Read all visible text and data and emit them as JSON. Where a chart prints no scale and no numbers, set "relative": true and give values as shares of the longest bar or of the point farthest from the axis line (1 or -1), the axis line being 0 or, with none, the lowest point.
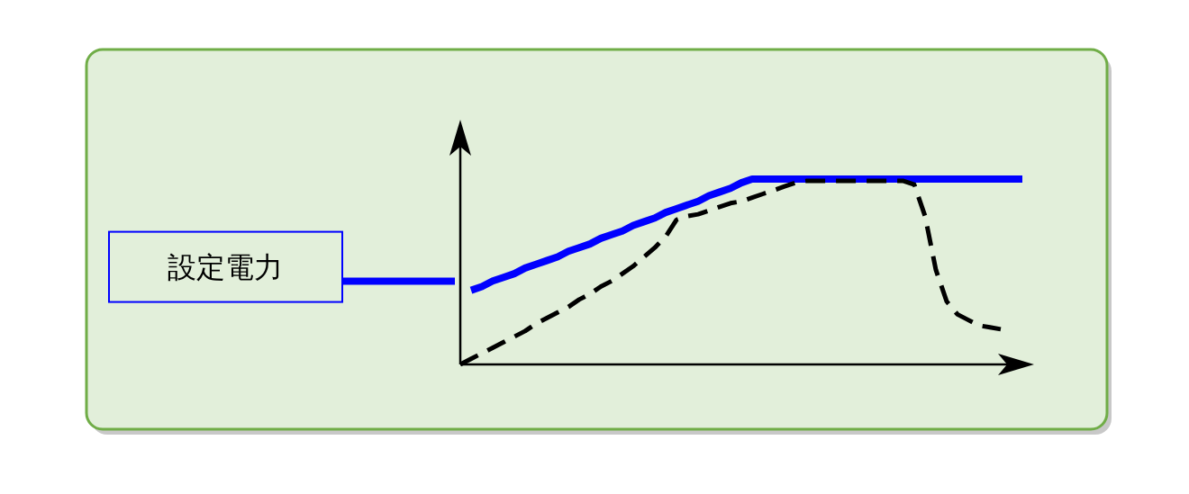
{
  "chart_data": {
    "type": "line",
    "relative": true,
    "categories": [
      null,
      null,
      null,
      null,
      null,
      null,
      null,
      null,
      null,
      null,
      null,
      null,
      null,
      null,
      null,
      null,
      null,
      null,
      null,
      null,
      null,
      null,
      null,
      null,
      null,
      null,
      null,
      null,
      null,
      null,
      null,
      null,
      null,
      null,
      null,
      null,
      null,
      null,
      null,
      null,
      null,
      null,
      null,
      null,
      null,
      null,
      null,
      null,
      null,
      null,
      null,
      null,
      null
    ],
    "series": [
      {
        "name": "設定電力",
        "color": "#0000ff",
        "line_style": "solid",
        "values": [
          null,
          0.4,
          0.42,
          0.45,
          0.47,
          0.49,
          0.52,
          0.54,
          0.56,
          0.58,
          0.61,
          0.63,
          0.65,
          0.68,
          0.7,
          0.72,
          0.75,
          0.77,
          0.79,
          0.82,
          0.84,
          0.86,
          0.88,
          0.91,
          0.93,
          0.95,
          0.98,
          1.0,
          1,
          1,
          1,
          1,
          1,
          1,
          1,
          1,
          1,
          1,
          1,
          1,
          1,
          1,
          1,
          1,
          1,
          1,
          1,
          1,
          1,
          1,
          1,
          1,
          1
        ]
      },
      {
        "color": "#000000",
        "line_style": "dashed",
        "values": [
          0,
          0.03,
          0.06,
          0.09,
          0.12,
          0.15,
          0.18,
          0.22,
          0.25,
          0.28,
          0.31,
          0.35,
          0.38,
          0.42,
          0.45,
          0.49,
          0.53,
          0.58,
          0.63,
          0.69,
          0.78,
          0.8,
          0.81,
          0.83,
          0.85,
          0.87,
          0.88,
          0.9,
          0.92,
          0.94,
          0.96,
          0.98,
          0.99,
          0.99,
          0.99,
          0.99,
          0.99,
          0.99,
          0.99,
          0.99,
          0.99,
          0.99,
          0.97,
          0.8,
          0.51,
          0.34,
          0.27,
          0.24,
          0.21,
          0.2,
          0.19,
          null,
          null
        ]
      }
    ]
  }
}
